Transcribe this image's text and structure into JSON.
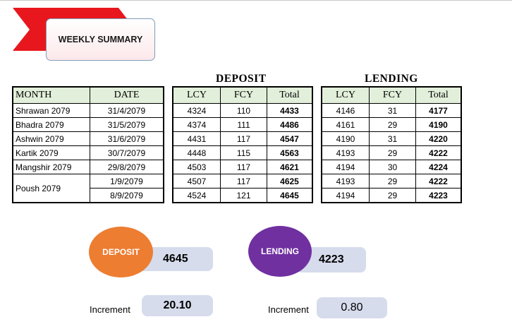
{
  "title": "WEEKLY SUMMARY",
  "colors": {
    "ribbon": "#e8171d",
    "deposit_circle": "#ed7d31",
    "lending_circle": "#7030a0",
    "header_fill": "#e2efda",
    "pill_fill": "#d6dcec"
  },
  "month_table": {
    "headers": [
      "MONTH",
      "DATE"
    ],
    "rows": [
      {
        "month": "Shrawan 2079",
        "date": "31/4/2079"
      },
      {
        "month": "Bhadra 2079",
        "date": "31/5/2079"
      },
      {
        "month": "Ashwin 2079",
        "date": "31/6/2079"
      },
      {
        "month": "Kartik 2079",
        "date": "30/7/2079"
      },
      {
        "month": "Mangshir 2079",
        "date": "29/8/2079"
      },
      {
        "month": "Poush 2079",
        "date": "1/9/2079"
      },
      {
        "month": "",
        "date": "8/9/2079"
      }
    ]
  },
  "deposit": {
    "heading": "DEPOSIT",
    "headers": [
      "LCY",
      "FCY",
      "Total"
    ],
    "rows": [
      [
        "4324",
        "110",
        "4433"
      ],
      [
        "4374",
        "111",
        "4486"
      ],
      [
        "4431",
        "117",
        "4547"
      ],
      [
        "4448",
        "115",
        "4563"
      ],
      [
        "4503",
        "117",
        "4621"
      ],
      [
        "4507",
        "117",
        "4625"
      ],
      [
        "4524",
        "121",
        "4645"
      ]
    ]
  },
  "lending": {
    "heading": "LENDING",
    "headers": [
      "LCY",
      "FCY",
      "Total"
    ],
    "rows": [
      [
        "4146",
        "31",
        "4177"
      ],
      [
        "4161",
        "29",
        "4190"
      ],
      [
        "4190",
        "31",
        "4220"
      ],
      [
        "4193",
        "29",
        "4222"
      ],
      [
        "4194",
        "30",
        "4224"
      ],
      [
        "4193",
        "29",
        "4222"
      ],
      [
        "4194",
        "29",
        "4223"
      ]
    ]
  },
  "summary": {
    "deposit": {
      "label": "DEPOSIT",
      "value": "4645",
      "increment_label": "Increment",
      "increment": "20.10"
    },
    "lending": {
      "label": "LENDING",
      "value": "4223",
      "increment_label": "Increment",
      "increment": "0.80"
    }
  }
}
